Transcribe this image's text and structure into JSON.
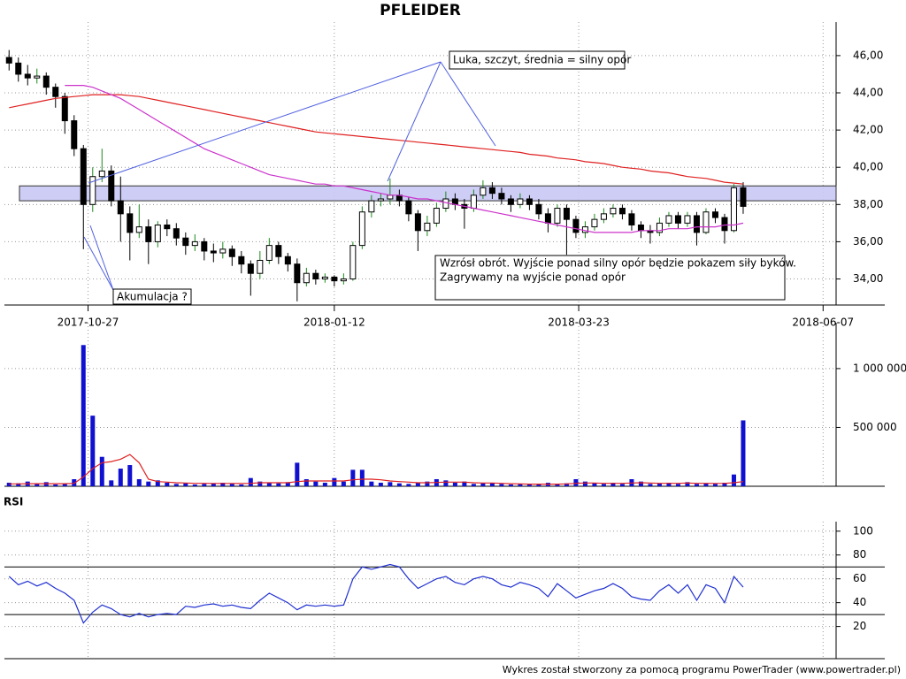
{
  "chart_data": {
    "type": "candlestick",
    "title": "PFLEIDER",
    "xlim": [
      -0.5,
      89
    ],
    "xticks": [
      {
        "value": 8.5,
        "label": "2017-10-27"
      },
      {
        "value": 35,
        "label": "2018-01-12"
      },
      {
        "value": 61.3,
        "label": "2018-03-23"
      },
      {
        "value": 87.6,
        "label": "2018-06-07"
      }
    ],
    "ylim": [
      32.6,
      47.8
    ],
    "yticks": [
      {
        "value": 34,
        "label": "34,00"
      },
      {
        "value": 36,
        "label": "36,00"
      },
      {
        "value": 38,
        "label": "38,00"
      },
      {
        "value": 40,
        "label": "40,00"
      },
      {
        "value": 42,
        "label": "42,00"
      },
      {
        "value": 44,
        "label": "44,00"
      },
      {
        "value": 46,
        "label": "46,00"
      }
    ],
    "grid": true,
    "up_color": "#ffffff",
    "down_color": "#000000",
    "zone": [
      38.2,
      39.0
    ],
    "zone_color": "#c8c8f5",
    "candles": [
      [
        45.9,
        46.3,
        45.2,
        45.6
      ],
      [
        45.6,
        45.9,
        44.6,
        45.0
      ],
      [
        45.0,
        45.5,
        44.4,
        44.8
      ],
      [
        44.8,
        45.3,
        44.5,
        44.9
      ],
      [
        44.9,
        45.1,
        43.9,
        44.3
      ],
      [
        44.3,
        44.5,
        43.2,
        43.8
      ],
      [
        43.8,
        44.0,
        41.8,
        42.5
      ],
      [
        42.5,
        42.8,
        40.6,
        41.0
      ],
      [
        41.0,
        41.2,
        35.6,
        38.0
      ],
      [
        38.0,
        40.0,
        37.6,
        39.5
      ],
      [
        39.5,
        41.0,
        39.2,
        39.8
      ],
      [
        39.8,
        40.1,
        37.9,
        38.2
      ],
      [
        38.2,
        39.5,
        36.0,
        37.5
      ],
      [
        37.5,
        37.9,
        35.0,
        36.5
      ],
      [
        36.5,
        38.0,
        36.2,
        36.8
      ],
      [
        36.8,
        37.2,
        34.8,
        36.0
      ],
      [
        36.0,
        37.1,
        35.7,
        36.9
      ],
      [
        36.9,
        37.2,
        36.3,
        36.7
      ],
      [
        36.7,
        37.0,
        35.8,
        36.2
      ],
      [
        36.2,
        36.5,
        35.3,
        35.8
      ],
      [
        35.8,
        36.4,
        35.5,
        36.0
      ],
      [
        36.0,
        36.2,
        35.0,
        35.5
      ],
      [
        35.5,
        35.9,
        34.9,
        35.4
      ],
      [
        35.4,
        36.0,
        35.1,
        35.6
      ],
      [
        35.6,
        35.8,
        34.7,
        35.2
      ],
      [
        35.2,
        35.5,
        34.3,
        34.8
      ],
      [
        34.8,
        35.0,
        33.1,
        34.3
      ],
      [
        34.3,
        35.5,
        34.0,
        35.0
      ],
      [
        35.0,
        36.2,
        34.8,
        35.8
      ],
      [
        35.8,
        36.0,
        34.8,
        35.2
      ],
      [
        35.2,
        35.4,
        34.4,
        34.8
      ],
      [
        34.8,
        35.1,
        32.8,
        33.8
      ],
      [
        33.8,
        34.6,
        33.6,
        34.3
      ],
      [
        34.3,
        34.5,
        33.7,
        34.0
      ],
      [
        34.0,
        34.3,
        33.8,
        34.1
      ],
      [
        34.1,
        34.2,
        33.6,
        33.9
      ],
      [
        33.9,
        34.3,
        33.7,
        34.0
      ],
      [
        34.0,
        36.0,
        33.9,
        35.8
      ],
      [
        35.8,
        37.9,
        35.6,
        37.6
      ],
      [
        37.6,
        38.5,
        37.3,
        38.2
      ],
      [
        38.2,
        38.6,
        37.9,
        38.3
      ],
      [
        38.3,
        39.4,
        38.0,
        38.5
      ],
      [
        38.5,
        38.8,
        37.9,
        38.2
      ],
      [
        38.2,
        38.4,
        37.1,
        37.5
      ],
      [
        37.5,
        37.7,
        35.5,
        36.6
      ],
      [
        36.6,
        37.4,
        36.3,
        37.0
      ],
      [
        37.0,
        38.1,
        36.8,
        37.8
      ],
      [
        37.8,
        38.7,
        37.6,
        38.3
      ],
      [
        38.3,
        38.6,
        37.7,
        38.0
      ],
      [
        38.0,
        38.3,
        36.7,
        37.8
      ],
      [
        37.8,
        38.8,
        37.6,
        38.5
      ],
      [
        38.5,
        39.3,
        38.3,
        38.9
      ],
      [
        38.9,
        39.2,
        38.3,
        38.6
      ],
      [
        38.6,
        38.9,
        38.0,
        38.3
      ],
      [
        38.3,
        38.5,
        37.6,
        38.0
      ],
      [
        38.0,
        38.6,
        37.8,
        38.3
      ],
      [
        38.3,
        38.5,
        37.7,
        38.0
      ],
      [
        38.0,
        38.3,
        37.2,
        37.5
      ],
      [
        37.5,
        37.8,
        36.5,
        37.0
      ],
      [
        37.0,
        38.0,
        36.8,
        37.8
      ],
      [
        37.8,
        38.0,
        35.3,
        37.2
      ],
      [
        37.2,
        37.4,
        36.2,
        36.5
      ],
      [
        36.5,
        37.1,
        36.2,
        36.8
      ],
      [
        36.8,
        37.5,
        36.6,
        37.2
      ],
      [
        37.2,
        37.8,
        37.0,
        37.5
      ],
      [
        37.5,
        38.0,
        37.3,
        37.8
      ],
      [
        37.8,
        38.0,
        37.2,
        37.5
      ],
      [
        37.5,
        37.7,
        36.6,
        36.9
      ],
      [
        36.9,
        37.1,
        36.2,
        36.6
      ],
      [
        36.6,
        36.9,
        35.9,
        36.5
      ],
      [
        36.5,
        37.3,
        36.3,
        37.0
      ],
      [
        37.0,
        37.6,
        36.8,
        37.4
      ],
      [
        37.4,
        37.6,
        36.7,
        37.0
      ],
      [
        37.0,
        37.6,
        36.8,
        37.4
      ],
      [
        37.4,
        37.6,
        35.8,
        36.5
      ],
      [
        36.5,
        37.8,
        36.4,
        37.6
      ],
      [
        37.6,
        37.8,
        37.0,
        37.3
      ],
      [
        37.3,
        37.5,
        35.9,
        36.6
      ],
      [
        36.6,
        39.1,
        36.5,
        38.9
      ],
      [
        38.9,
        39.2,
        37.5,
        37.9
      ]
    ],
    "series": [
      {
        "color": "#e02020",
        "values": [
          43.2,
          43.3,
          43.4,
          43.5,
          43.6,
          43.7,
          43.75,
          43.8,
          43.85,
          43.9,
          43.9,
          43.9,
          43.9,
          43.85,
          43.8,
          43.7,
          43.6,
          43.5,
          43.4,
          43.3,
          43.2,
          43.1,
          43.0,
          42.9,
          42.8,
          42.7,
          42.6,
          42.5,
          42.4,
          42.3,
          42.2,
          42.1,
          42.0,
          41.9,
          41.85,
          41.8,
          41.75,
          41.7,
          41.65,
          41.6,
          41.55,
          41.5,
          41.45,
          41.4,
          41.35,
          41.3,
          41.25,
          41.2,
          41.15,
          41.1,
          41.05,
          41.0,
          40.95,
          40.9,
          40.85,
          40.8,
          40.7,
          40.65,
          40.6,
          40.5,
          40.45,
          40.4,
          40.3,
          40.25,
          40.2,
          40.1,
          40.0,
          39.95,
          39.9,
          39.8,
          39.75,
          39.7,
          39.6,
          39.5,
          39.45,
          39.4,
          39.3,
          39.2,
          39.15,
          39.1
        ]
      },
      {
        "color": "#cc33cc",
        "values": [
          null,
          null,
          null,
          null,
          null,
          null,
          44.4,
          44.4,
          44.4,
          44.3,
          44.1,
          43.9,
          43.7,
          43.4,
          43.1,
          42.8,
          42.5,
          42.2,
          41.9,
          41.6,
          41.3,
          41.0,
          40.8,
          40.6,
          40.4,
          40.2,
          40.0,
          39.8,
          39.6,
          39.5,
          39.4,
          39.3,
          39.2,
          39.1,
          39.1,
          39.0,
          39.0,
          38.9,
          38.8,
          38.7,
          38.6,
          38.5,
          38.5,
          38.4,
          38.3,
          38.3,
          38.2,
          38.1,
          38.0,
          37.9,
          37.8,
          37.7,
          37.6,
          37.5,
          37.4,
          37.3,
          37.2,
          37.1,
          37.0,
          36.9,
          36.8,
          36.7,
          36.6,
          36.5,
          36.5,
          36.5,
          36.5,
          36.5,
          36.6,
          36.6,
          36.6,
          36.7,
          36.7,
          36.7,
          36.8,
          36.8,
          36.8,
          36.9,
          36.9,
          37.0
        ]
      }
    ],
    "volume": {
      "ylim": [
        0,
        1390000
      ],
      "yticks": [
        {
          "value": 500000,
          "label": "500 000"
        },
        {
          "value": 1000000,
          "label": "1 000 000"
        }
      ],
      "color": "#1010d0",
      "values": [
        30000,
        25000,
        40000,
        20000,
        35000,
        15000,
        20000,
        60000,
        1200000,
        600000,
        250000,
        50000,
        150000,
        180000,
        60000,
        40000,
        50000,
        30000,
        20000,
        25000,
        15000,
        20000,
        25000,
        30000,
        20000,
        15000,
        70000,
        40000,
        30000,
        25000,
        35000,
        200000,
        60000,
        40000,
        30000,
        70000,
        40000,
        140000,
        140000,
        40000,
        30000,
        35000,
        25000,
        20000,
        30000,
        40000,
        60000,
        50000,
        30000,
        40000,
        20000,
        25000,
        30000,
        20000,
        15000,
        20000,
        15000,
        20000,
        30000,
        20000,
        25000,
        60000,
        40000,
        25000,
        20000,
        30000,
        20000,
        60000,
        40000,
        20000,
        25000,
        30000,
        20000,
        35000,
        20000,
        25000,
        20000,
        30000,
        100000,
        560000
      ],
      "ma": {
        "color": "#e02020",
        "values": [
          20000,
          20000,
          22000,
          22000,
          22000,
          22000,
          22000,
          25000,
          80000,
          150000,
          200000,
          210000,
          230000,
          270000,
          200000,
          60000,
          40000,
          35000,
          30000,
          28000,
          25000,
          25000,
          24000,
          24000,
          24000,
          23000,
          25000,
          30000,
          30000,
          30000,
          30000,
          40000,
          45000,
          45000,
          45000,
          45000,
          45000,
          55000,
          60000,
          60000,
          55000,
          45000,
          40000,
          35000,
          30000,
          30000,
          32000,
          35000,
          35000,
          35000,
          30000,
          28000,
          28000,
          25000,
          22000,
          20000,
          18000,
          18000,
          18000,
          18000,
          20000,
          25000,
          28000,
          28000,
          25000,
          25000,
          25000,
          28000,
          30000,
          28000,
          25000,
          25000,
          25000,
          28000,
          25000,
          25000,
          24000,
          25000,
          30000,
          40000
        ]
      }
    },
    "rsi": {
      "label": "RSI",
      "ylim": [
        -7,
        108
      ],
      "yticks": [
        20,
        40,
        60,
        80,
        100
      ],
      "levels": [
        30,
        70
      ],
      "color": "#2030d0",
      "values": [
        62,
        55,
        58,
        54,
        57,
        52,
        48,
        42,
        23,
        32,
        38,
        35,
        30,
        28,
        31,
        28,
        30,
        31,
        30,
        37,
        36,
        38,
        39,
        37,
        38,
        36,
        35,
        42,
        48,
        44,
        40,
        34,
        38,
        37,
        38,
        37,
        38,
        60,
        70,
        68,
        70,
        72,
        70,
        60,
        52,
        56,
        60,
        62,
        57,
        55,
        60,
        62,
        60,
        55,
        53,
        57,
        55,
        52,
        45,
        56,
        50,
        44,
        47,
        50,
        52,
        56,
        52,
        45,
        43,
        42,
        50,
        55,
        48,
        55,
        42,
        55,
        52,
        40,
        62,
        53
      ]
    },
    "annotations": [
      "Luka, szczyt, średnia = silny opór",
      "Akumulacja ?",
      "Wzrósł obrót. Wyjście ponad silny opór będzie pokazem siły byków.",
      "Zagrywamy na wyjście ponad opór"
    ],
    "footer": "Wykres został stworzony za pomocą programu PowerTrader (www.powertrader.pl)"
  }
}
